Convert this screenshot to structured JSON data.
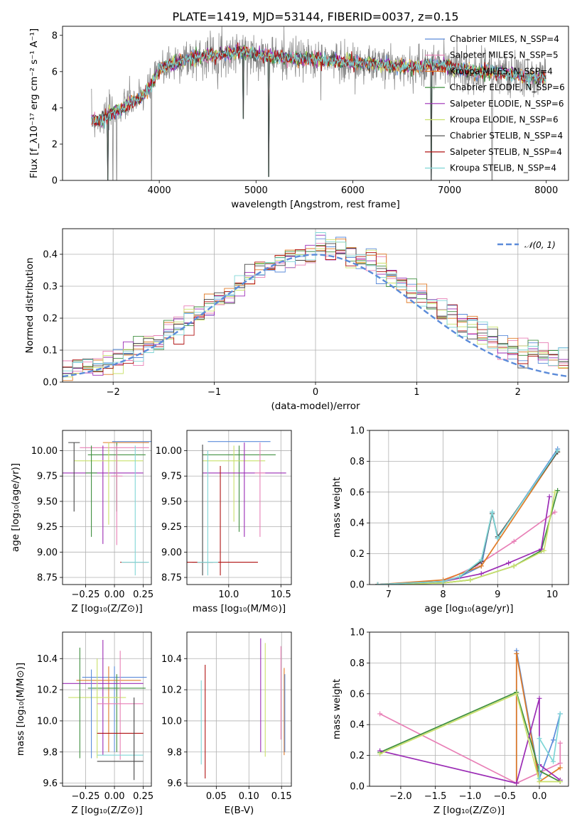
{
  "title": "PLATE=1419, MJD=53144, FIBERID=0037, z=0.15",
  "palette": [
    "#5b8bd9",
    "#e87fb6",
    "#e07b27",
    "#3f8f3f",
    "#9b2cb5",
    "#c9e06a",
    "#454545",
    "#b01212",
    "#7fd6d6"
  ],
  "chart_data": [
    {
      "id": "spectrum",
      "type": "line",
      "title": "PLATE=1419, MJD=53144, FIBERID=0037, z=0.15",
      "xlabel": "wavelength [Angstrom, rest frame]",
      "ylabel": "Flux [f_λ10⁻¹⁷ erg cm⁻² s⁻¹ A⁻¹]",
      "xlim": [
        3000,
        8230
      ],
      "ylim": [
        0,
        8.5
      ],
      "xticks": [
        "4000",
        "5000",
        "6000",
        "7000",
        "8000"
      ],
      "yticks": [
        "0",
        "2",
        "4",
        "6",
        "8"
      ],
      "grid": false,
      "legend_position": "top-right",
      "series": [
        {
          "name": "Chabrier MILES, N_SSP=4",
          "color": "#5b8bd9"
        },
        {
          "name": "Salpeter MILES, N_SSP=5",
          "color": "#e87fb6"
        },
        {
          "name": "Kroupa MILES, N_SSP=4",
          "color": "#e07b27"
        },
        {
          "name": "Chabrier ELODIE, N_SSP=6",
          "color": "#3f8f3f"
        },
        {
          "name": "Salpeter ELODIE, N_SSP=6",
          "color": "#9b2cb5"
        },
        {
          "name": "Kroupa ELODIE, N_SSP=6",
          "color": "#c9e06a"
        },
        {
          "name": "Chabrier STELIB, N_SSP=4",
          "color": "#454545"
        },
        {
          "name": "Salpeter STELIB, N_SSP=4",
          "color": "#b01212"
        },
        {
          "name": "Kroupa STELIB, N_SSP=4",
          "color": "#7fd6d6"
        }
      ],
      "data_color": "#888888",
      "continuum": {
        "x": [
          3300,
          3400,
          3500,
          3600,
          3700,
          3800,
          3900,
          4000,
          4100,
          4300,
          4500,
          4700,
          4850,
          5000,
          5200,
          5500,
          5800,
          6000,
          6300,
          6600,
          6800,
          7000,
          7200,
          7400,
          7600,
          7700,
          7800,
          8000
        ],
        "y": [
          3.3,
          3.3,
          3.8,
          3.9,
          4.3,
          4.5,
          5.1,
          6.1,
          6.4,
          6.7,
          6.9,
          7.0,
          7.1,
          6.95,
          6.8,
          6.7,
          6.6,
          6.5,
          6.4,
          6.2,
          6.4,
          6.3,
          6.0,
          6.0,
          5.9,
          5.8,
          5.7,
          5.6
        ]
      },
      "dips": [
        {
          "x": 3470,
          "y": 0
        },
        {
          "x": 3520,
          "y": 0
        },
        {
          "x": 3560,
          "y": 0
        },
        {
          "x": 3920,
          "y": 0
        },
        {
          "x": 4870,
          "y": 3.4
        },
        {
          "x": 5130,
          "y": 0.2
        },
        {
          "x": 6810,
          "y": 0
        },
        {
          "x": 7440,
          "y": 0
        }
      ]
    },
    {
      "id": "residuals",
      "type": "step",
      "xlabel": "(data-model)/error",
      "ylabel": "Normed distribution",
      "xlim": [
        -2.5,
        2.5
      ],
      "ylim": [
        0,
        0.48
      ],
      "xticks": [
        "−2",
        "−1",
        "0",
        "1",
        "2"
      ],
      "yticks": [
        "0.0",
        "0.1",
        "0.2",
        "0.3",
        "0.4"
      ],
      "grid": true,
      "bin_width": 0.1,
      "legend": "𝒩(0, 1)",
      "legend_position": "top-right",
      "normal_color": "#5b8bd9"
    },
    {
      "id": "age_vs_Z",
      "type": "errorbar",
      "xlabel": "Z [log₁₀(Z/Z⊙)]",
      "ylabel": "age  [log₁₀(age/yr)]",
      "xlim": [
        -0.45,
        0.32
      ],
      "ylim": [
        8.68,
        10.2
      ],
      "xticks": [
        -0.25,
        0.0,
        0.25
      ],
      "yticks": [
        8.75,
        9.0,
        9.25,
        9.5,
        9.75,
        10.0
      ],
      "xticklabels": [
        "−0.25",
        "0.00",
        "0.25"
      ],
      "yticklabels": [
        "8.75",
        "9.00",
        "9.25",
        "9.50",
        "9.75",
        "10.00"
      ],
      "grid": true,
      "points": [
        {
          "x": 0.17,
          "y": 10.09,
          "xerr": 0.19,
          "ylo": 10.09,
          "yhi": 10.09,
          "c": 0
        },
        {
          "x": 0.0,
          "y": 10.03,
          "xerr": 0.3,
          "ylo": 10.03,
          "yhi": 10.03,
          "c": 1
        },
        {
          "x": 0.1,
          "y": 10.08,
          "xerr": 0.2,
          "ylo": 10.08,
          "yhi": 10.08,
          "c": 2
        },
        {
          "x": 0.02,
          "y": 9.96,
          "xerr": 0.25,
          "ylo": 9.4,
          "yhi": 10.08,
          "c": 3
        },
        {
          "x": -0.1,
          "y": 9.78,
          "xerr": 0.35,
          "ylo": 9.08,
          "yhi": 10.05,
          "c": 4
        },
        {
          "x": -0.05,
          "y": 9.9,
          "xerr": 0.3,
          "ylo": 9.27,
          "yhi": 10.08,
          "c": 5
        },
        {
          "x": -0.35,
          "y": 10.08,
          "xerr": 0.05,
          "ylo": 9.4,
          "yhi": 10.08,
          "c": 6
        },
        {
          "x": 0.17,
          "y": 8.9,
          "xerr": 0.12,
          "ylo": 8.9,
          "yhi": 8.9,
          "c": 7
        },
        {
          "x": 0.18,
          "y": 8.9,
          "xerr": 0.12,
          "ylo": 8.77,
          "yhi": 10.05,
          "c": 8
        },
        {
          "x": -0.2,
          "y": 9.78,
          "xerr": 0.05,
          "ylo": 9.15,
          "yhi": 10.05,
          "c": 3
        },
        {
          "x": 0.02,
          "y": 9.75,
          "xerr": 0.05,
          "ylo": 9.07,
          "yhi": 10.05,
          "c": 1
        }
      ]
    },
    {
      "id": "age_vs_mass",
      "type": "errorbar",
      "xlabel": "mass [log₁₀(M/M⊙)]",
      "xlim": [
        9.6,
        10.6
      ],
      "ylim": [
        8.68,
        10.2
      ],
      "xticks": [
        10.0,
        10.5
      ],
      "yticks": [
        8.75,
        9.0,
        9.25,
        9.5,
        9.75,
        10.0
      ],
      "xticklabels": [
        "10.0",
        "10.5"
      ],
      "yticklabels": [
        "8.75",
        "9.00",
        "9.25",
        "9.50",
        "9.75",
        "10.00"
      ],
      "grid": true,
      "points": [
        {
          "x": 10.1,
          "y": 10.09,
          "xerr": 0.3,
          "ylo": 10.09,
          "yhi": 10.09,
          "c": 0
        },
        {
          "x": 10.1,
          "y": 9.96,
          "xerr": 0.35,
          "ylo": 9.2,
          "yhi": 10.05,
          "c": 3
        },
        {
          "x": 10.05,
          "y": 9.9,
          "xerr": 0.3,
          "ylo": 9.3,
          "yhi": 10.05,
          "c": 5
        },
        {
          "x": 10.15,
          "y": 9.78,
          "xerr": 0.4,
          "ylo": 9.15,
          "yhi": 10.08,
          "c": 4
        },
        {
          "x": 9.75,
          "y": 8.9,
          "xerr": 0.1,
          "ylo": 8.77,
          "yhi": 10.06,
          "c": 6
        },
        {
          "x": 9.92,
          "y": 8.9,
          "xerr": 0.36,
          "ylo": 8.77,
          "yhi": 9.85,
          "c": 7
        },
        {
          "x": 9.8,
          "y": 8.9,
          "xerr": 0.1,
          "ylo": 8.77,
          "yhi": 10.0,
          "c": 8
        },
        {
          "x": 10.3,
          "y": 9.78,
          "xerr": 0.05,
          "ylo": 9.15,
          "yhi": 10.08,
          "c": 1
        }
      ]
    },
    {
      "id": "weight_vs_age",
      "type": "line",
      "xlabel": "age  [log₁₀(age/yr)]",
      "ylabel": "mass weight",
      "xlim": [
        6.65,
        10.3
      ],
      "ylim": [
        0,
        1.0
      ],
      "xticks": [
        7,
        8,
        9,
        10
      ],
      "yticks": [
        0.0,
        0.2,
        0.4,
        0.6,
        0.8,
        1.0
      ],
      "xticklabels": [
        "7",
        "8",
        "9",
        "10"
      ],
      "yticklabels": [
        "0.0",
        "0.2",
        "0.4",
        "0.6",
        "0.8",
        "1.0"
      ],
      "grid": true,
      "series": [
        {
          "c": 0,
          "x": [
            8.3,
            8.7,
            8.9,
            9.0,
            10.1
          ],
          "y": [
            0.05,
            0.12,
            0.47,
            0.3,
            0.88
          ]
        },
        {
          "c": 1,
          "x": [
            6.8,
            8.0,
            8.6,
            9.3,
            10.05
          ],
          "y": [
            0.0,
            0.02,
            0.12,
            0.28,
            0.47
          ]
        },
        {
          "c": 2,
          "x": [
            6.8,
            8.0,
            8.7,
            10.1
          ],
          "y": [
            0.0,
            0.03,
            0.12,
            0.86
          ]
        },
        {
          "c": 3,
          "x": [
            6.8,
            8.0,
            8.5,
            9.3,
            9.8,
            10.1
          ],
          "y": [
            0.0,
            0.01,
            0.03,
            0.12,
            0.22,
            0.61
          ]
        },
        {
          "c": 4,
          "x": [
            6.8,
            8.0,
            8.7,
            9.2,
            9.8,
            9.95
          ],
          "y": [
            0.0,
            0.02,
            0.07,
            0.14,
            0.23,
            0.57
          ]
        },
        {
          "c": 5,
          "x": [
            6.8,
            8.0,
            8.5,
            9.3,
            9.85,
            10.05
          ],
          "y": [
            0.0,
            0.01,
            0.03,
            0.12,
            0.22,
            0.6
          ]
        },
        {
          "c": 6,
          "x": [
            6.8,
            8.0,
            8.3,
            8.7,
            8.9,
            9.0,
            10.1
          ],
          "y": [
            0.0,
            0.02,
            0.05,
            0.15,
            0.46,
            0.31,
            0.86
          ]
        },
        {
          "c": 8,
          "x": [
            6.8,
            8.0,
            8.3,
            8.7,
            8.9,
            9.0,
            10.1
          ],
          "y": [
            0.0,
            0.02,
            0.05,
            0.16,
            0.47,
            0.3,
            0.87
          ]
        }
      ]
    },
    {
      "id": "mass_vs_Z",
      "type": "errorbar",
      "xlabel": "Z [log₁₀(Z/Z⊙)]",
      "ylabel": "mass [log₁₀(M/M⊙)]",
      "xlim": [
        -0.45,
        0.32
      ],
      "ylim": [
        9.58,
        10.57
      ],
      "xticks": [
        -0.25,
        0.0,
        0.25
      ],
      "yticks": [
        9.6,
        9.8,
        10.0,
        10.2,
        10.4
      ],
      "xticklabels": [
        "−0.25",
        "0.00",
        "0.25"
      ],
      "yticklabels": [
        "9.6",
        "9.8",
        "10.0",
        "10.2",
        "10.4"
      ],
      "grid": true,
      "points": [
        {
          "x": 0.0,
          "y": 10.28,
          "xerr": 0.28,
          "ylo": 9.8,
          "yhi": 10.35,
          "c": 0
        },
        {
          "x": -0.05,
          "y": 10.26,
          "xerr": 0.28,
          "ylo": 9.8,
          "yhi": 10.35,
          "c": 2
        },
        {
          "x": 0.02,
          "y": 10.21,
          "xerr": 0.25,
          "ylo": 9.8,
          "yhi": 10.3,
          "c": 3
        },
        {
          "x": -0.1,
          "y": 10.24,
          "xerr": 0.35,
          "ylo": 9.78,
          "yhi": 10.52,
          "c": 4
        },
        {
          "x": -0.15,
          "y": 10.15,
          "xerr": 0.25,
          "ylo": 9.76,
          "yhi": 10.4,
          "c": 5
        },
        {
          "x": 0.05,
          "y": 10.11,
          "xerr": 0.2,
          "ylo": 9.75,
          "yhi": 10.45,
          "c": 1
        },
        {
          "x": 0.05,
          "y": 9.74,
          "xerr": 0.2,
          "ylo": 9.74,
          "yhi": 9.74,
          "c": 6
        },
        {
          "x": 0.05,
          "y": 9.92,
          "xerr": 0.2,
          "ylo": 9.92,
          "yhi": 9.92,
          "c": 7
        },
        {
          "x": 0.05,
          "y": 9.78,
          "xerr": 0.2,
          "ylo": 9.78,
          "yhi": 9.78,
          "c": 8
        },
        {
          "x": -0.3,
          "y": 10.0,
          "xerr": 0.0,
          "ylo": 9.76,
          "yhi": 10.47,
          "c": 3
        },
        {
          "x": 0.17,
          "y": 10.0,
          "xerr": 0.0,
          "ylo": 9.62,
          "yhi": 10.15,
          "c": 6
        },
        {
          "x": -0.2,
          "y": 10.0,
          "xerr": 0.0,
          "ylo": 9.76,
          "yhi": 10.33,
          "c": 0
        }
      ]
    },
    {
      "id": "mass_vs_ebv",
      "type": "errorbar",
      "xlabel": "E(B-V)",
      "xlim": [
        0.005,
        0.165
      ],
      "ylim": [
        9.58,
        10.57
      ],
      "xticks": [
        0.05,
        0.1,
        0.15
      ],
      "yticks": [
        9.6,
        9.8,
        10.0,
        10.2,
        10.4
      ],
      "xticklabels": [
        "0.05",
        "0.10",
        "0.15"
      ],
      "yticklabels": [
        "9.6",
        "9.8",
        "10.0",
        "10.2",
        "10.4"
      ],
      "grid": true,
      "points": [
        {
          "x": 0.027,
          "y": 10.0,
          "xerr": 0,
          "ylo": 9.72,
          "yhi": 10.26,
          "c": 8
        },
        {
          "x": 0.033,
          "y": 10.0,
          "xerr": 0,
          "ylo": 9.63,
          "yhi": 10.36,
          "c": 7
        },
        {
          "x": 0.118,
          "y": 10.0,
          "xerr": 0,
          "ylo": 9.8,
          "yhi": 10.53,
          "c": 4
        },
        {
          "x": 0.125,
          "y": 10.0,
          "xerr": 0,
          "ylo": 9.77,
          "yhi": 10.5,
          "c": 5
        },
        {
          "x": 0.149,
          "y": 10.0,
          "xerr": 0,
          "ylo": 9.88,
          "yhi": 10.48,
          "c": 1
        },
        {
          "x": 0.154,
          "y": 10.0,
          "xerr": 0,
          "ylo": 9.78,
          "yhi": 10.34,
          "c": 2
        },
        {
          "x": 0.155,
          "y": 10.0,
          "xerr": 0,
          "ylo": 9.8,
          "yhi": 10.3,
          "c": 0
        }
      ]
    },
    {
      "id": "weight_vs_Z",
      "type": "line",
      "xlabel": "Z [log₁₀(Z/Z⊙)]",
      "ylabel": "mass weight",
      "xlim": [
        -2.45,
        0.42
      ],
      "ylim": [
        0,
        1.0
      ],
      "xticks": [
        -2.0,
        -1.5,
        -1.0,
        -0.5,
        0.0
      ],
      "yticks": [
        0.0,
        0.2,
        0.4,
        0.6,
        0.8,
        1.0
      ],
      "xticklabels": [
        "−2.0",
        "−1.5",
        "−1.0",
        "−0.5",
        "0.0"
      ],
      "yticklabels": [
        "0.0",
        "0.2",
        "0.4",
        "0.6",
        "0.8",
        "1.0"
      ],
      "grid": true,
      "series": [
        {
          "c": 0,
          "x": [
            -0.33,
            -0.33,
            0.0,
            0.2,
            0.3
          ],
          "y": [
            0.02,
            0.88,
            0.05,
            0.3,
            0.47
          ]
        },
        {
          "c": 1,
          "x": [
            -2.3,
            -0.33,
            0.3,
            0.3
          ],
          "y": [
            0.47,
            0.02,
            0.15,
            0.28
          ]
        },
        {
          "c": 2,
          "x": [
            -0.33,
            -0.33,
            0.0,
            0.3
          ],
          "y": [
            0.02,
            0.86,
            0.03,
            0.12
          ]
        },
        {
          "c": 3,
          "x": [
            -2.3,
            -0.33,
            0.0,
            0.3
          ],
          "y": [
            0.22,
            0.61,
            0.1,
            0.03
          ]
        },
        {
          "c": 4,
          "x": [
            -2.3,
            -0.33,
            0.0,
            0.0,
            0.3
          ],
          "y": [
            0.23,
            0.02,
            0.57,
            0.14,
            0.04
          ]
        },
        {
          "c": 5,
          "x": [
            -2.3,
            -0.33,
            0.0,
            0.3
          ],
          "y": [
            0.21,
            0.6,
            0.03,
            0.03
          ]
        },
        {
          "c": 8,
          "x": [
            0.0,
            0.0,
            0.2,
            0.3
          ],
          "y": [
            0.05,
            0.31,
            0.16,
            0.47
          ]
        }
      ]
    }
  ]
}
